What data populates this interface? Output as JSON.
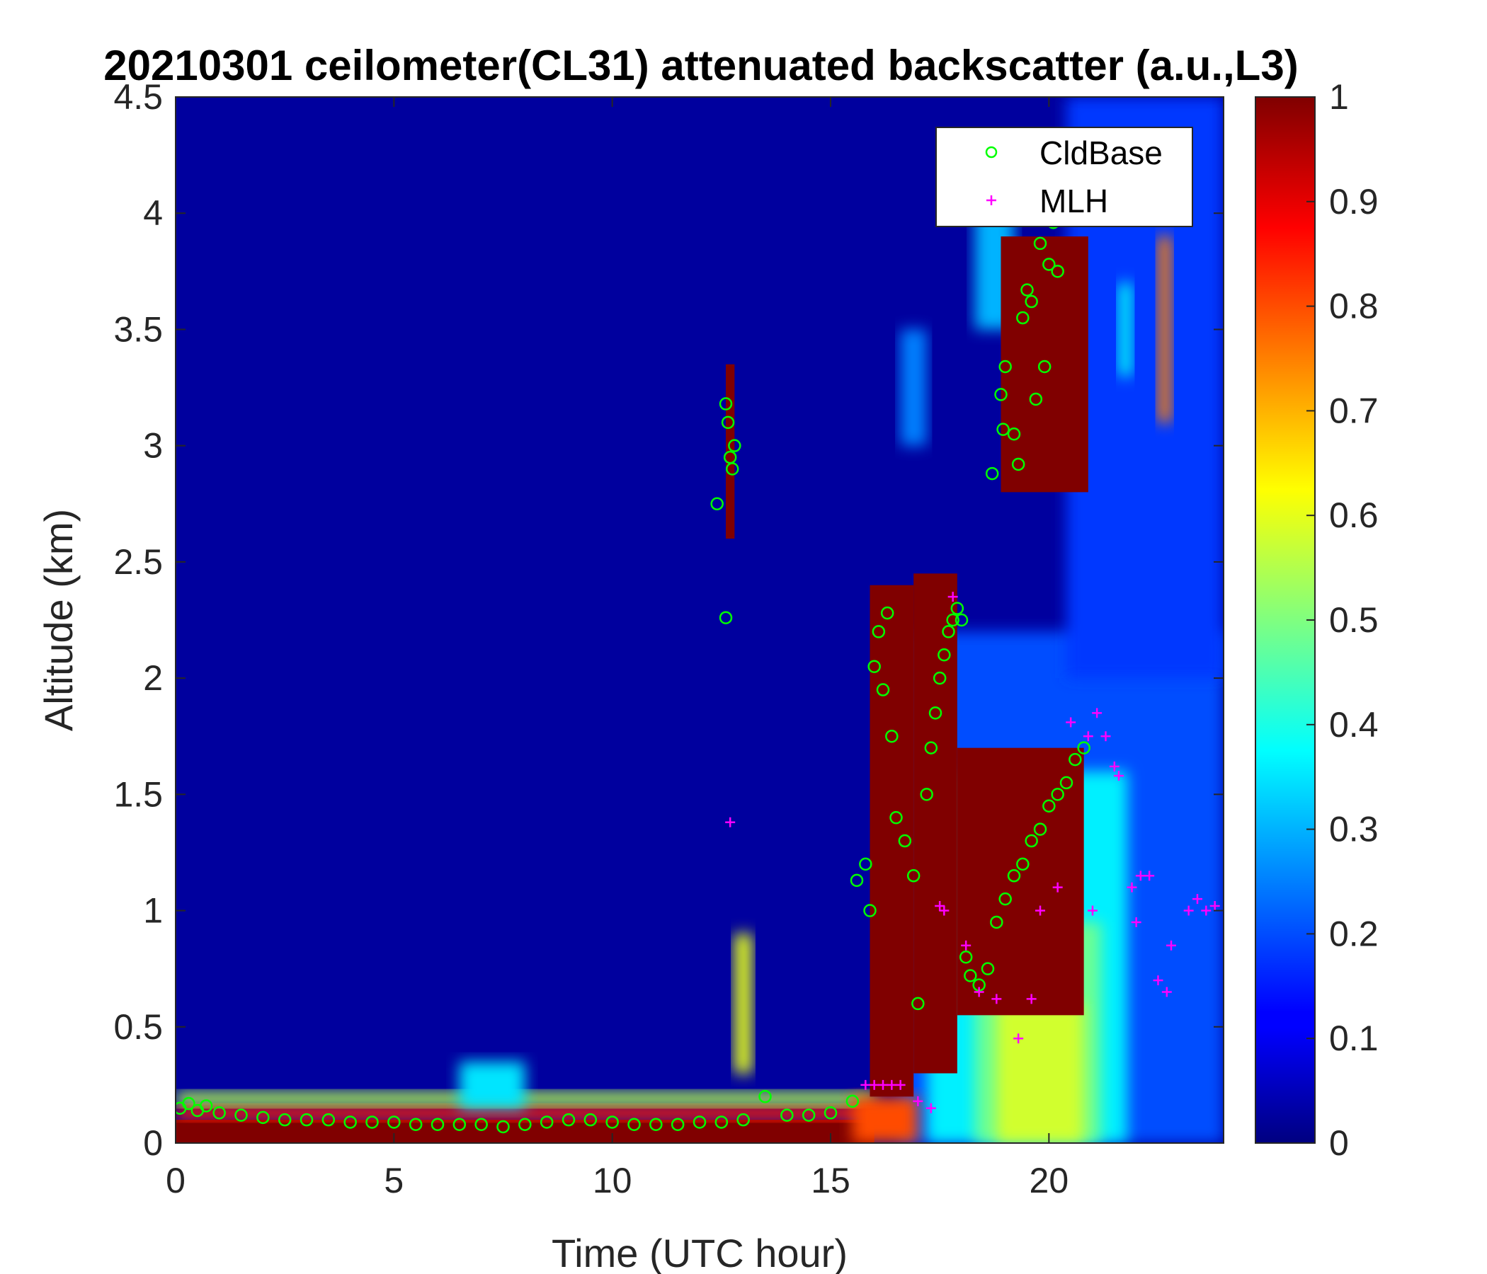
{
  "chart_data": {
    "type": "heatmap",
    "title": "20210301 ceilometer(CL31) attenuated backscatter (a.u.,L3)",
    "xlabel": "Time (UTC hour)",
    "ylabel": "Altitude (km)",
    "xlim": [
      0,
      24
    ],
    "ylim": [
      0,
      4.5
    ],
    "xticks": [
      "0",
      "5",
      "10",
      "15",
      "20"
    ],
    "yticks": [
      "0",
      "0.5",
      "1",
      "1.5",
      "2",
      "2.5",
      "3",
      "3.5",
      "4",
      "4.5"
    ],
    "colorbar": {
      "colormap": "jet",
      "clim": [
        0,
        1
      ],
      "ticks": [
        "0",
        "0.1",
        "0.2",
        "0.3",
        "0.4",
        "0.5",
        "0.6",
        "0.7",
        "0.8",
        "0.9",
        "1"
      ]
    },
    "legend": {
      "location": "top-right",
      "entries": [
        {
          "name": "CldBase",
          "marker": "circle",
          "color": "#00ff00"
        },
        {
          "name": "MLH",
          "marker": "plus",
          "color": "#ff00ff"
        }
      ]
    },
    "backscatter_features": [
      {
        "kind": "rect",
        "t": [
          0,
          24
        ],
        "z": [
          0,
          4.5
        ],
        "value": 0.03
      },
      {
        "kind": "rect",
        "t": [
          16.6,
          24
        ],
        "z": [
          0,
          2.2
        ],
        "value": 0.2
      },
      {
        "kind": "rect",
        "t": [
          17.2,
          21.8
        ],
        "z": [
          0,
          1.6
        ],
        "value": 0.36
      },
      {
        "kind": "rect",
        "t": [
          18.3,
          21.2
        ],
        "z": [
          0,
          0.95
        ],
        "value": 0.48
      },
      {
        "kind": "rect",
        "t": [
          18.8,
          20.8
        ],
        "z": [
          0,
          0.6
        ],
        "value": 0.58
      },
      {
        "kind": "rect",
        "t": [
          20.4,
          24
        ],
        "z": [
          2.0,
          4.5
        ],
        "value": 0.18
      },
      {
        "kind": "rect",
        "t": [
          22.5,
          22.8
        ],
        "z": [
          3.1,
          3.9
        ],
        "value": 0.75
      },
      {
        "kind": "rect",
        "t": [
          21.6,
          21.9
        ],
        "z": [
          3.3,
          3.7
        ],
        "value": 0.38
      },
      {
        "kind": "rect",
        "t": [
          16.6,
          17.2
        ],
        "z": [
          3.0,
          3.5
        ],
        "value": 0.25
      },
      {
        "kind": "rect",
        "t": [
          18.3,
          19.2
        ],
        "z": [
          3.5,
          4.1
        ],
        "value": 0.3
      },
      {
        "kind": "rect",
        "t": [
          0,
          16.0
        ],
        "z": [
          0,
          0.1
        ],
        "value": 1.0
      },
      {
        "kind": "rect",
        "t": [
          0,
          16.0
        ],
        "z": [
          0.1,
          0.16
        ],
        "value": 0.85
      },
      {
        "kind": "rect",
        "t": [
          0,
          16.0
        ],
        "z": [
          0.16,
          0.22
        ],
        "value": 0.55
      },
      {
        "kind": "rect",
        "t": [
          6.5,
          8.0
        ],
        "z": [
          0.15,
          0.35
        ],
        "value": 0.35
      },
      {
        "kind": "rect",
        "t": [
          15.5,
          17.0
        ],
        "z": [
          0,
          0.2
        ],
        "value": 0.8
      },
      {
        "kind": "rect",
        "t": [
          12.8,
          13.2
        ],
        "z": [
          0.3,
          0.9
        ],
        "value": 0.6
      },
      {
        "kind": "rect",
        "t": [
          12.6,
          12.8
        ],
        "z": [
          2.6,
          3.35
        ],
        "value": 1.0
      },
      {
        "kind": "rect",
        "t": [
          18.9,
          20.9
        ],
        "z": [
          2.8,
          3.9
        ],
        "value": 1.0
      },
      {
        "kind": "rect",
        "t": [
          15.9,
          16.9
        ],
        "z": [
          0.2,
          2.4
        ],
        "value": 1.0
      },
      {
        "kind": "rect",
        "t": [
          16.9,
          17.9
        ],
        "z": [
          0.3,
          2.45
        ],
        "value": 1.0
      },
      {
        "kind": "rect",
        "t": [
          17.9,
          20.8
        ],
        "z": [
          0.55,
          1.7
        ],
        "value": 1.0
      }
    ],
    "series": [
      {
        "name": "CldBase",
        "points": [
          [
            0.1,
            0.15
          ],
          [
            0.3,
            0.17
          ],
          [
            0.5,
            0.14
          ],
          [
            0.7,
            0.16
          ],
          [
            1.0,
            0.13
          ],
          [
            1.5,
            0.12
          ],
          [
            2.0,
            0.11
          ],
          [
            2.5,
            0.1
          ],
          [
            3.0,
            0.1
          ],
          [
            3.5,
            0.1
          ],
          [
            4.0,
            0.09
          ],
          [
            4.5,
            0.09
          ],
          [
            5.0,
            0.09
          ],
          [
            5.5,
            0.08
          ],
          [
            6.0,
            0.08
          ],
          [
            6.5,
            0.08
          ],
          [
            7.0,
            0.08
          ],
          [
            7.5,
            0.07
          ],
          [
            8.0,
            0.08
          ],
          [
            8.5,
            0.09
          ],
          [
            9.0,
            0.1
          ],
          [
            9.5,
            0.1
          ],
          [
            10.0,
            0.09
          ],
          [
            10.5,
            0.08
          ],
          [
            11.0,
            0.08
          ],
          [
            11.5,
            0.08
          ],
          [
            12.0,
            0.09
          ],
          [
            12.5,
            0.09
          ],
          [
            13.0,
            0.1
          ],
          [
            13.5,
            0.2
          ],
          [
            14.0,
            0.12
          ],
          [
            14.5,
            0.12
          ],
          [
            15.0,
            0.13
          ],
          [
            15.5,
            0.18
          ],
          [
            12.4,
            2.75
          ],
          [
            12.6,
            3.18
          ],
          [
            12.65,
            3.1
          ],
          [
            12.7,
            2.95
          ],
          [
            12.75,
            2.9
          ],
          [
            12.8,
            3.0
          ],
          [
            12.6,
            2.26
          ],
          [
            15.6,
            1.13
          ],
          [
            15.8,
            1.2
          ],
          [
            15.9,
            1.0
          ],
          [
            16.0,
            2.05
          ],
          [
            16.1,
            2.2
          ],
          [
            16.2,
            1.95
          ],
          [
            16.3,
            2.28
          ],
          [
            16.4,
            1.75
          ],
          [
            16.5,
            1.4
          ],
          [
            16.7,
            1.3
          ],
          [
            16.9,
            1.15
          ],
          [
            17.0,
            0.6
          ],
          [
            17.2,
            1.5
          ],
          [
            17.3,
            1.7
          ],
          [
            17.4,
            1.85
          ],
          [
            17.5,
            2.0
          ],
          [
            17.6,
            2.1
          ],
          [
            17.7,
            2.2
          ],
          [
            17.8,
            2.25
          ],
          [
            17.9,
            2.3
          ],
          [
            18.0,
            2.25
          ],
          [
            18.1,
            0.8
          ],
          [
            18.2,
            0.72
          ],
          [
            18.4,
            0.68
          ],
          [
            18.6,
            0.75
          ],
          [
            18.8,
            0.95
          ],
          [
            19.0,
            1.05
          ],
          [
            19.2,
            1.15
          ],
          [
            19.4,
            1.2
          ],
          [
            19.6,
            1.3
          ],
          [
            19.8,
            1.35
          ],
          [
            20.0,
            1.45
          ],
          [
            20.2,
            1.5
          ],
          [
            20.4,
            1.55
          ],
          [
            20.6,
            1.65
          ],
          [
            20.8,
            1.7
          ],
          [
            18.7,
            2.88
          ],
          [
            18.9,
            3.22
          ],
          [
            19.0,
            3.34
          ],
          [
            19.2,
            3.05
          ],
          [
            19.4,
            3.55
          ],
          [
            19.6,
            3.62
          ],
          [
            19.8,
            3.87
          ],
          [
            19.9,
            3.34
          ],
          [
            20.0,
            3.78
          ],
          [
            20.1,
            3.96
          ],
          [
            20.2,
            3.75
          ],
          [
            19.7,
            3.2
          ],
          [
            19.3,
            2.92
          ],
          [
            18.95,
            3.07
          ],
          [
            19.5,
            3.67
          ]
        ]
      },
      {
        "name": "MLH",
        "points": [
          [
            12.7,
            1.38
          ],
          [
            15.8,
            0.25
          ],
          [
            16.0,
            0.25
          ],
          [
            16.2,
            0.25
          ],
          [
            16.4,
            0.25
          ],
          [
            16.6,
            0.25
          ],
          [
            17.0,
            0.18
          ],
          [
            17.3,
            0.15
          ],
          [
            17.5,
            1.02
          ],
          [
            17.6,
            1.0
          ],
          [
            17.8,
            2.35
          ],
          [
            18.1,
            0.85
          ],
          [
            18.4,
            0.65
          ],
          [
            18.8,
            0.62
          ],
          [
            19.3,
            0.45
          ],
          [
            19.6,
            0.62
          ],
          [
            19.8,
            1.0
          ],
          [
            20.2,
            1.1
          ],
          [
            20.5,
            1.81
          ],
          [
            20.9,
            1.75
          ],
          [
            21.1,
            1.85
          ],
          [
            21.3,
            1.75
          ],
          [
            21.5,
            1.62
          ],
          [
            21.6,
            1.58
          ],
          [
            21.9,
            1.1
          ],
          [
            22.1,
            1.15
          ],
          [
            22.3,
            1.15
          ],
          [
            22.5,
            0.7
          ],
          [
            22.7,
            0.65
          ],
          [
            22.8,
            0.85
          ],
          [
            23.2,
            1.0
          ],
          [
            23.4,
            1.05
          ],
          [
            23.6,
            1.0
          ],
          [
            23.8,
            1.02
          ],
          [
            21.0,
            1.0
          ],
          [
            22.0,
            0.95
          ]
        ]
      }
    ]
  }
}
